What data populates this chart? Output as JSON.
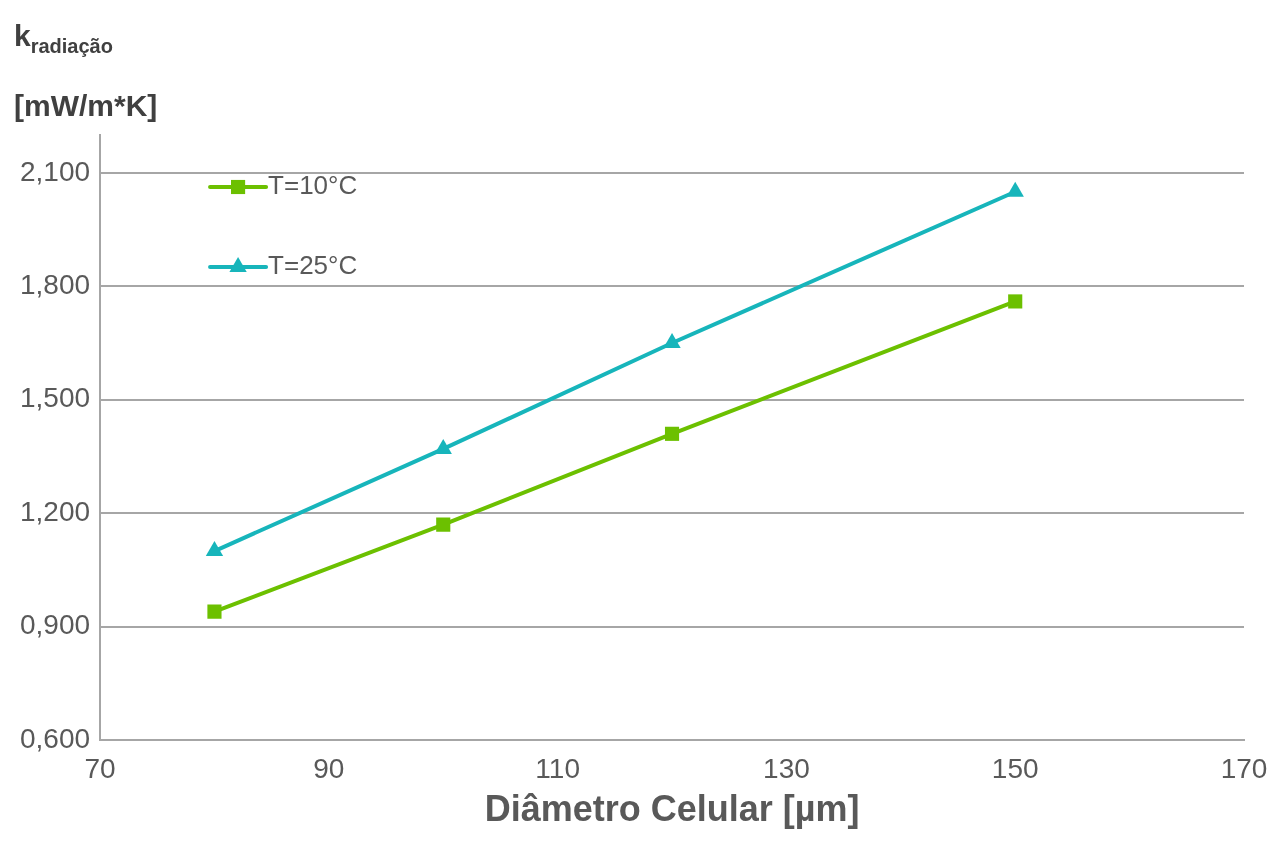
{
  "chart_data": {
    "type": "line",
    "ylabel": "k$_{radiação}$ [mW/m*K]",
    "xlabel": "Diâmetro Celular [µm]",
    "x": [
      80,
      100,
      120,
      150
    ],
    "series": [
      {
        "name": "T=10°C",
        "color": "#6cc000",
        "marker": "square",
        "values": [
          0.94,
          1.17,
          1.41,
          1.76
        ]
      },
      {
        "name": "T=25°C",
        "color": "#17b5bb",
        "marker": "triangle",
        "values": [
          1.1,
          1.37,
          1.65,
          2.05
        ]
      }
    ],
    "xlim": [
      70,
      170
    ],
    "xticks": [
      70,
      90,
      110,
      130,
      150,
      170
    ],
    "ylim": [
      0.6,
      2.2
    ],
    "yticks": [
      {
        "value": 0.6,
        "label": "0,600"
      },
      {
        "value": 0.9,
        "label": "0,900"
      },
      {
        "value": 1.2,
        "label": "1,200"
      },
      {
        "value": 1.5,
        "label": "1,500"
      },
      {
        "value": 1.8,
        "label": "1,800"
      },
      {
        "value": 2.1,
        "label": "2,100"
      }
    ],
    "grid": "y",
    "legend": "top left",
    "line_style": "solid"
  }
}
